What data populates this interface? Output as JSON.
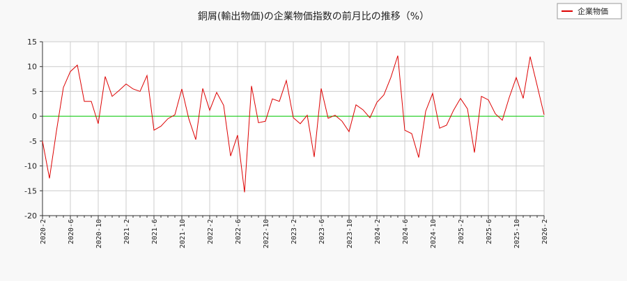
{
  "chart_data": {
    "type": "line",
    "title": "銅屑(輸出物価)の企業物価指数の前月比の推移（%）",
    "categories": [
      "2020-2",
      null,
      null,
      null,
      "2020-6",
      null,
      null,
      null,
      "2020-10",
      null,
      null,
      null,
      "2021-2",
      null,
      null,
      null,
      "2021-6",
      null,
      null,
      null,
      "2021-10",
      null,
      null,
      null,
      "2022-2",
      null,
      null,
      null,
      "2022-6",
      null,
      null,
      null,
      "2022-10",
      null,
      null,
      null,
      "2023-2",
      null,
      null,
      null,
      "2023-6",
      null,
      null,
      null,
      "2023-10",
      null,
      null,
      null,
      "2024-2",
      null,
      null,
      null,
      "2024-6",
      null,
      null,
      null,
      "2024-10",
      null,
      null,
      null,
      "2025-2",
      null,
      null,
      null,
      "2025-6",
      null,
      null,
      null,
      "2025-10",
      null,
      null,
      null,
      "2026-2"
    ],
    "series": [
      {
        "name": "企業物価",
        "color": "#dd0000",
        "values": [
          -5,
          -12.5,
          -3,
          5.8,
          9,
          10.3,
          3,
          3,
          -1.5,
          8,
          4,
          5.2,
          6.5,
          5.5,
          5,
          8.2,
          -2.8,
          -2,
          -0.5,
          0.3,
          5.5,
          -0.5,
          -4.7,
          5.6,
          1.2,
          4.8,
          2.2,
          -8,
          -3.8,
          -15.3,
          6.1,
          -1.3,
          -1,
          3.5,
          3,
          7.2,
          -0.3,
          -1.5,
          0.2,
          -8.2,
          5.6,
          -0.4,
          0.2,
          -1,
          -3.1,
          2.3,
          1.3,
          -0.3,
          2.8,
          4.3,
          7.8,
          12.2,
          -2.8,
          -3.5,
          -8.3,
          1,
          4.6,
          -2.4,
          -1.8,
          1.2,
          3.6,
          1.5,
          -7.3,
          4,
          3.3,
          0.5,
          -0.8,
          3.8,
          7.8,
          3.6,
          12,
          6.2,
          0.3
        ]
      }
    ],
    "ylim": [
      -20,
      15
    ],
    "yticks": [
      -20,
      -15,
      -10,
      -5,
      0,
      5,
      10,
      15
    ],
    "grid": true,
    "zero_line_color": "#00cc00",
    "legend": "top-right"
  }
}
